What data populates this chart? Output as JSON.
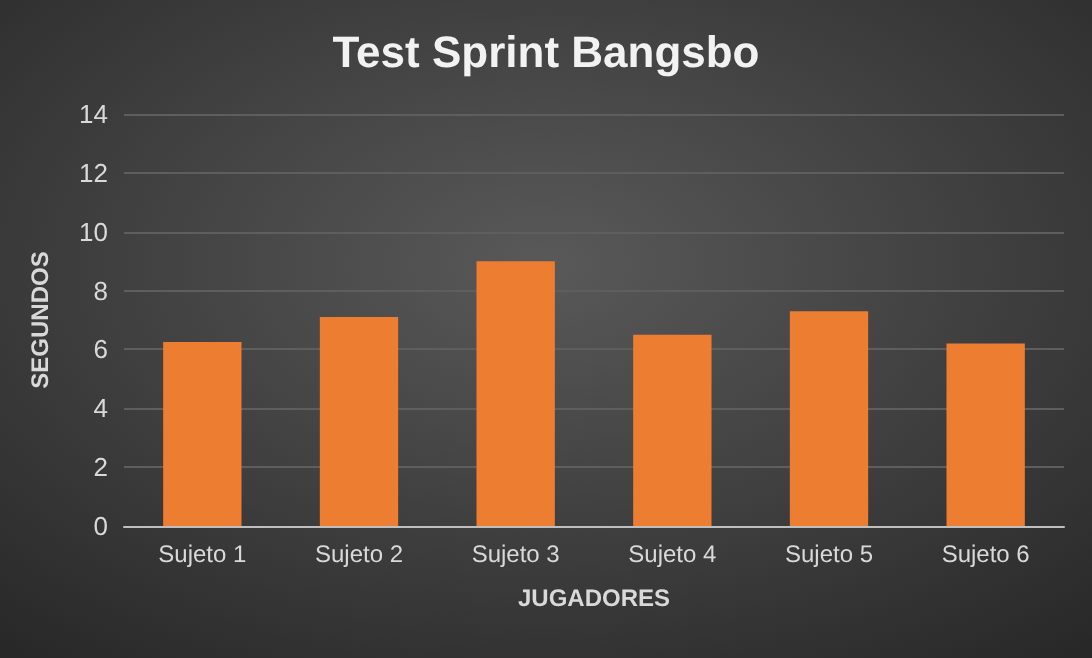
{
  "chart_data": {
    "type": "bar",
    "title": "Test Sprint Bangsbo",
    "xlabel": "JUGADORES",
    "ylabel": "SEGUNDOS",
    "categories": [
      "Sujeto 1",
      "Sujeto 2",
      "Sujeto 3",
      "Sujeto 4",
      "Sujeto 5",
      "Sujeto 6"
    ],
    "values": [
      6.25,
      7.1,
      9.0,
      6.5,
      7.3,
      6.2
    ],
    "color": "#ed7d31",
    "ylim": [
      0,
      14
    ],
    "yticks": [
      0,
      2,
      4,
      6,
      8,
      10,
      12,
      14
    ],
    "grid": "y"
  }
}
